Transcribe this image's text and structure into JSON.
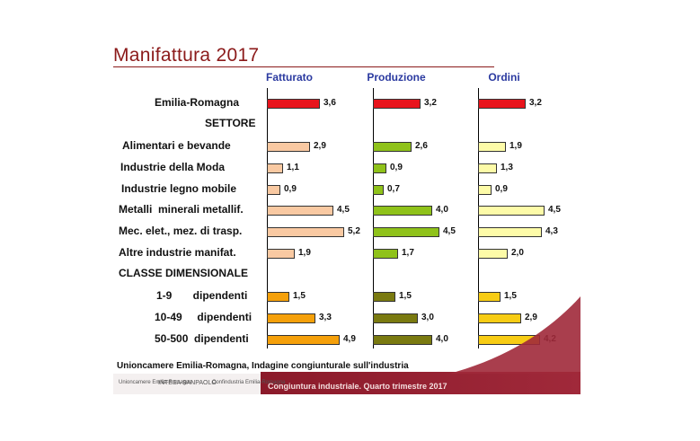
{
  "title": "Manifattura 2017",
  "footer": {
    "source": "Unioncamere Emilia-Romagna, Indagine congiunturale sull'industria",
    "caption": "Congiuntura industriale. Quarto trimestre 2017"
  },
  "logos": [
    "Unioncamere Emilia-Romagna",
    "INTESA SANPAOLO",
    "Confindustria Emilia-Romagna"
  ],
  "chart_data": {
    "type": "bar",
    "orientation": "horizontal",
    "categories": [
      "Emilia-Romagna",
      "SETTORE",
      "Alimentari e bevande",
      "Industrie della Moda",
      "Industrie legno mobile",
      "Metalli  minerali metallif.",
      "Mec. elet., mez. di trasp.",
      "Altre industrie manifat.",
      "CLASSE DIMENSIONALE",
      "1-9       dipendenti",
      "10-49     dipendenti",
      "50-500  dipendenti"
    ],
    "series": [
      {
        "name": "Fatturato",
        "values": [
          3.6,
          null,
          2.9,
          1.1,
          0.9,
          4.5,
          5.2,
          1.9,
          null,
          1.5,
          3.3,
          4.9
        ],
        "labels": [
          "3,6",
          "",
          "2,9",
          "1,1",
          "0,9",
          "4,5",
          "5,2",
          "1,9",
          "",
          "1,5",
          "3,3",
          "4,9"
        ]
      },
      {
        "name": "Produzione",
        "values": [
          3.2,
          null,
          2.6,
          0.9,
          0.7,
          4.0,
          4.5,
          1.7,
          null,
          1.5,
          3.0,
          4.0
        ],
        "labels": [
          "3,2",
          "",
          "2,6",
          "0,9",
          "0,7",
          "4,0",
          "4,5",
          "1,7",
          "",
          "1,5",
          "3,0",
          "4,0"
        ]
      },
      {
        "name": "Ordini",
        "values": [
          3.2,
          null,
          1.9,
          1.3,
          0.9,
          4.5,
          4.3,
          2.0,
          null,
          1.5,
          2.9,
          4.2
        ],
        "labels": [
          "3,2",
          "",
          "1,9",
          "1,3",
          "0,9",
          "4,5",
          "4,3",
          "2,0",
          "",
          "1,5",
          "2,9",
          "4,2"
        ]
      }
    ],
    "colors": {
      "total": [
        "#e8141c",
        "#e8141c",
        "#e8141c"
      ],
      "settore": [
        "#f9c9a2",
        "#8fc21a",
        "#fdfba8"
      ],
      "classe": [
        "#f5a00a",
        "#7a7a10",
        "#f7cc14"
      ]
    },
    "legend": "none",
    "grid": false
  }
}
